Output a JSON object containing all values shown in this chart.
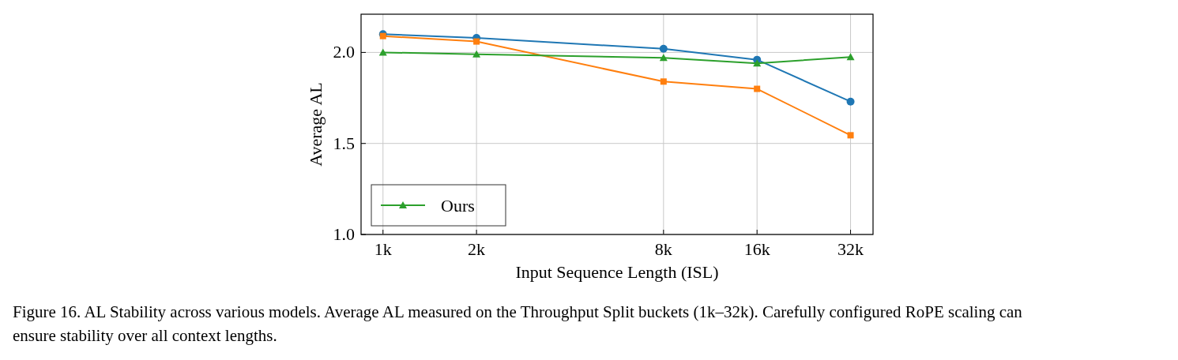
{
  "chart_data": {
    "type": "line",
    "xlabel": "Input Sequence Length (ISL)",
    "ylabel": "Average AL",
    "x": [
      1,
      2,
      8,
      16,
      32
    ],
    "log": "x",
    "xlim": [
      0.85,
      37.8
    ],
    "xticks": [
      {
        "value": 1,
        "label": "1k"
      },
      {
        "value": 2,
        "label": "2k"
      },
      {
        "value": 8,
        "label": "8k"
      },
      {
        "value": 16,
        "label": "16k"
      },
      {
        "value": 32,
        "label": "32k"
      }
    ],
    "ylim": [
      1.0,
      2.21
    ],
    "yticks": [
      {
        "value": 1.0,
        "label": "1.0"
      },
      {
        "value": 1.5,
        "label": "1.5"
      },
      {
        "value": 2.0,
        "label": "2.0"
      }
    ],
    "grid": true,
    "legend": "lower left",
    "series": [
      {
        "color": "#1f77b4",
        "marker": "circle",
        "values": [
          2.1,
          2.08,
          2.02,
          1.96,
          1.73
        ]
      },
      {
        "color": "#ff7f0e",
        "marker": "square",
        "values": [
          2.09,
          2.06,
          1.84,
          1.8,
          1.545
        ]
      },
      {
        "name": "Ours",
        "color": "#2ca02c",
        "marker": "triangle",
        "values": [
          2.0,
          1.99,
          1.97,
          1.94,
          1.975
        ]
      }
    ],
    "annotations": [
      "Figure 16. AL Stability across various models. Average AL measured on the Throughput Split buckets (1k–32k). Carefully configured RoPE scaling can ensure stability over all context lengths."
    ]
  }
}
